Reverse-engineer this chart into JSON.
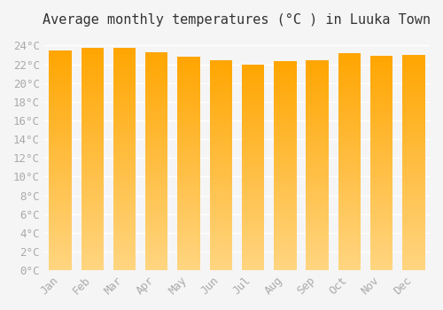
{
  "title": "Average monthly temperatures (°C ) in Luuka Town",
  "months": [
    "Jan",
    "Feb",
    "Mar",
    "Apr",
    "May",
    "Jun",
    "Jul",
    "Aug",
    "Sep",
    "Oct",
    "Nov",
    "Dec"
  ],
  "temperatures": [
    23.5,
    23.8,
    23.8,
    23.3,
    22.8,
    22.4,
    22.0,
    22.3,
    22.4,
    23.2,
    22.9,
    23.0
  ],
  "bar_color_top": "#FFA500",
  "bar_color_bottom": "#FFD580",
  "background_color": "#f5f5f5",
  "grid_color": "#ffffff",
  "ylim": [
    0,
    25
  ],
  "ytick_step": 2,
  "title_fontsize": 11,
  "tick_fontsize": 9,
  "tick_color": "#aaaaaa",
  "spine_color": "#cccccc"
}
